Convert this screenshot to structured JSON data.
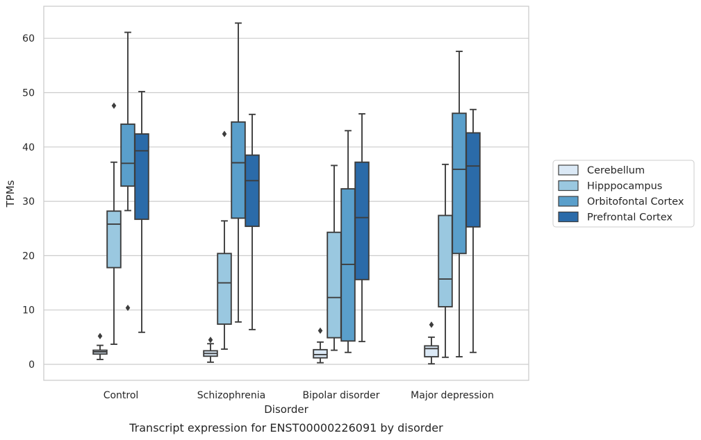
{
  "caption": "Transcript expression for ENST00000226091 by disorder",
  "chart_data": {
    "type": "boxplot",
    "xlabel": "Disorder",
    "ylabel": "TPMs",
    "ylim": [
      -3,
      66
    ],
    "yticks": [
      0,
      10,
      20,
      30,
      40,
      50,
      60
    ],
    "grid": true,
    "legend_position": "right",
    "categories": [
      "Control",
      "Schizophrenia",
      "Bipolar disorder",
      "Major depression"
    ],
    "series": [
      {
        "name": "Cerebellum",
        "color": "#dbe9f6",
        "boxes": [
          {
            "whisker_low": 0.9,
            "q1": 1.9,
            "median": 2.3,
            "q3": 2.6,
            "whisker_high": 3.5,
            "outliers": [
              5.2
            ]
          },
          {
            "whisker_low": 0.4,
            "q1": 1.5,
            "median": 2.0,
            "q3": 2.5,
            "whisker_high": 3.8,
            "outliers": [
              4.5
            ]
          },
          {
            "whisker_low": 0.3,
            "q1": 1.2,
            "median": 1.8,
            "q3": 2.7,
            "whisker_high": 4.1,
            "outliers": [
              6.2
            ]
          },
          {
            "whisker_low": 0.1,
            "q1": 1.4,
            "median": 2.9,
            "q3": 3.4,
            "whisker_high": 5.0,
            "outliers": [
              7.3
            ]
          }
        ]
      },
      {
        "name": "Hipppocampus",
        "color": "#9ac8e0",
        "boxes": [
          {
            "whisker_low": 3.7,
            "q1": 17.8,
            "median": 25.8,
            "q3": 28.2,
            "whisker_high": 37.2,
            "outliers": [
              47.6
            ]
          },
          {
            "whisker_low": 2.8,
            "q1": 7.4,
            "median": 15.0,
            "q3": 20.4,
            "whisker_high": 26.4,
            "outliers": [
              42.4
            ]
          },
          {
            "whisker_low": 2.6,
            "q1": 4.9,
            "median": 12.3,
            "q3": 24.3,
            "whisker_high": 36.6,
            "outliers": []
          },
          {
            "whisker_low": 1.3,
            "q1": 10.6,
            "median": 15.7,
            "q3": 27.4,
            "whisker_high": 36.8,
            "outliers": []
          }
        ]
      },
      {
        "name": "Orbitofontal Cortex",
        "color": "#5a9fcb",
        "boxes": [
          {
            "whisker_low": 28.3,
            "q1": 32.8,
            "median": 37.0,
            "q3": 44.2,
            "whisker_high": 61.1,
            "outliers": [
              10.4
            ]
          },
          {
            "whisker_low": 7.8,
            "q1": 26.9,
            "median": 37.1,
            "q3": 44.6,
            "whisker_high": 62.8,
            "outliers": []
          },
          {
            "whisker_low": 2.2,
            "q1": 4.3,
            "median": 18.4,
            "q3": 32.3,
            "whisker_high": 43.0,
            "outliers": []
          },
          {
            "whisker_low": 1.4,
            "q1": 20.4,
            "median": 35.9,
            "q3": 46.2,
            "whisker_high": 57.6,
            "outliers": []
          }
        ]
      },
      {
        "name": "Prefrontal Cortex",
        "color": "#2b6ba9",
        "boxes": [
          {
            "whisker_low": 5.9,
            "q1": 26.7,
            "median": 39.3,
            "q3": 42.4,
            "whisker_high": 50.2,
            "outliers": []
          },
          {
            "whisker_low": 6.4,
            "q1": 25.4,
            "median": 33.8,
            "q3": 38.5,
            "whisker_high": 46.0,
            "outliers": []
          },
          {
            "whisker_low": 4.2,
            "q1": 15.6,
            "median": 27.0,
            "q3": 37.2,
            "whisker_high": 46.1,
            "outliers": []
          },
          {
            "whisker_low": 2.2,
            "q1": 25.3,
            "median": 36.5,
            "q3": 42.6,
            "whisker_high": 46.9,
            "outliers": []
          }
        ]
      }
    ]
  }
}
